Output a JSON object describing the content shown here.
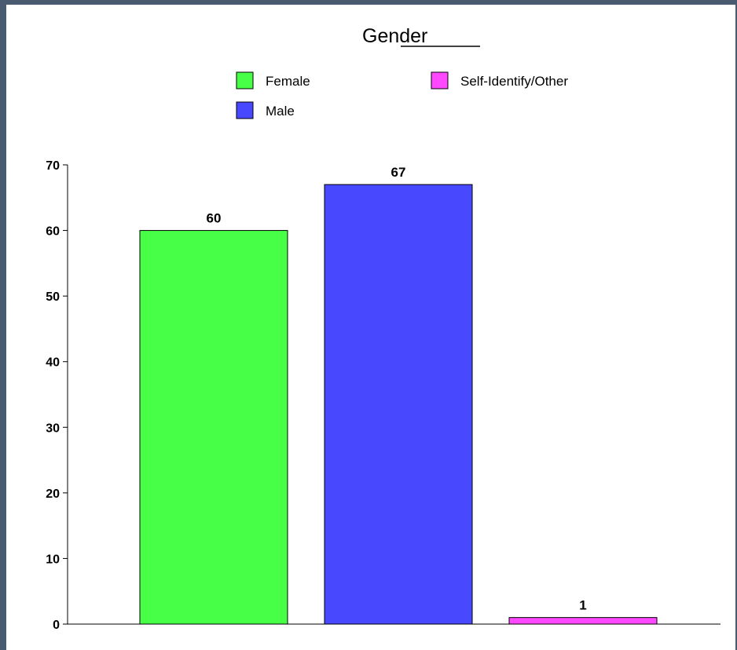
{
  "chart_data": {
    "type": "bar",
    "title": "Gender",
    "categories": [
      "Female",
      "Male",
      "Self-Identify/Other"
    ],
    "values": [
      60,
      67,
      1
    ],
    "colors": [
      "#48ff48",
      "#4848ff",
      "#ff48ff"
    ],
    "data_labels": [
      "60",
      "67",
      "1"
    ],
    "legend": {
      "placement": "top",
      "entries": [
        {
          "label": "Female",
          "color": "#48ff48"
        },
        {
          "label": "Self-Identify/Other",
          "color": "#ff48ff"
        },
        {
          "label": "Male",
          "color": "#4848ff"
        }
      ]
    },
    "y_ticks": [
      "0",
      "10",
      "20",
      "30",
      "40",
      "50",
      "60",
      "70"
    ],
    "ylim": [
      0,
      70
    ],
    "xlabel": "",
    "ylabel": "",
    "grid": false
  }
}
